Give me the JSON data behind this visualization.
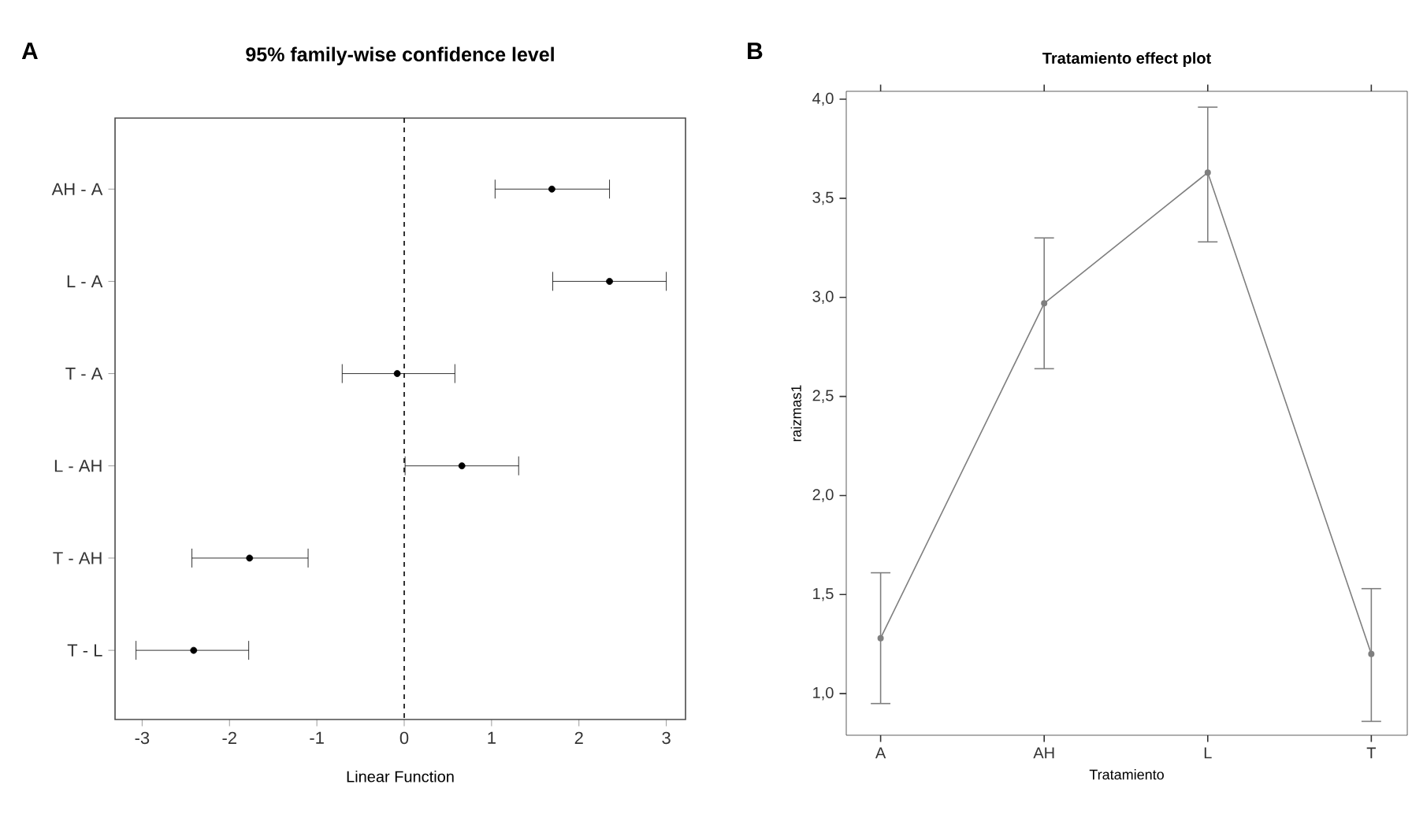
{
  "chart_data": [
    {
      "type": "scatter",
      "title": "95% family-wise confidence level",
      "xlabel": "Linear Function",
      "annotations": [
        "A"
      ],
      "orientation": "horizontal",
      "categories": [
        "AH - A",
        "L - A",
        "T - A",
        "L - AH",
        "T - AH",
        "T - L"
      ],
      "values": [
        1.69,
        2.35,
        -0.08,
        0.66,
        -1.77,
        -2.41
      ],
      "errors": [
        [
          1.04,
          2.35
        ],
        [
          1.7,
          3.0
        ],
        [
          -0.71,
          0.58
        ],
        [
          0.01,
          1.31
        ],
        [
          -2.43,
          -1.1
        ],
        [
          -3.07,
          -1.78
        ]
      ],
      "color": "#000000",
      "marker": "circle",
      "xlim": [
        -3.31,
        3.22
      ],
      "xticks": [
        -3,
        -2,
        -1,
        0,
        1,
        2,
        3
      ],
      "ref_lines": [
        {
          "axis": "x",
          "value": 0,
          "line_style": "dashed",
          "color": "#000000"
        }
      ]
    },
    {
      "type": "line",
      "title": "Tratamiento effect plot",
      "xlabel": "Tratamiento",
      "ylabel": "raizmas1",
      "annotations": [
        "B"
      ],
      "categories": [
        "A",
        "AH",
        "L",
        "T"
      ],
      "values": [
        1.28,
        2.97,
        3.63,
        1.2
      ],
      "errors": [
        [
          0.95,
          1.61
        ],
        [
          2.64,
          3.3
        ],
        [
          3.28,
          3.96
        ],
        [
          0.86,
          1.53
        ]
      ],
      "color": "#7f7f7f",
      "marker": "circle",
      "line_style": "solid",
      "ylim": [
        0.79,
        4.04
      ],
      "yticks": [
        {
          "value": 1.0,
          "label": "1,0"
        },
        {
          "value": 1.5,
          "label": "1,5"
        },
        {
          "value": 2.0,
          "label": "2,0"
        },
        {
          "value": 2.5,
          "label": "2,5"
        },
        {
          "value": 3.0,
          "label": "3,0"
        },
        {
          "value": 3.5,
          "label": "3,5"
        },
        {
          "value": 4.0,
          "label": "4,0"
        }
      ],
      "grid": false
    }
  ]
}
